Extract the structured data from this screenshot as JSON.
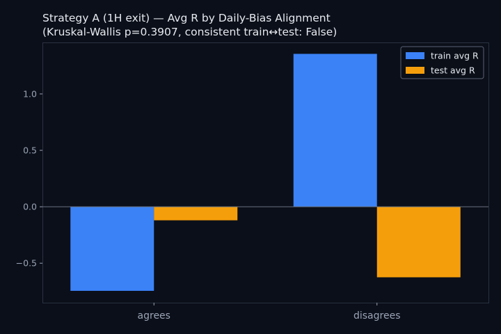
{
  "chart_data": {
    "type": "bar",
    "title": "Strategy A (1H exit) — Avg R by Daily-Bias Alignment",
    "subtitle": "(Kruskal-Wallis p=0.3907, consistent train↔test: False)",
    "xlabel": "",
    "ylabel": "",
    "categories": [
      "agrees",
      "disagrees"
    ],
    "series": [
      {
        "name": "train avg R",
        "values": [
          -0.745,
          1.355
        ],
        "color": "#3b82f6"
      },
      {
        "name": "test avg R",
        "values": [
          -0.12,
          -0.625
        ],
        "color": "#f59e0b"
      }
    ],
    "ylim": [
      -0.85,
      1.45
    ],
    "yticks": [
      {
        "value": -0.5,
        "label": "−0.5"
      },
      {
        "value": 0.0,
        "label": "0.0"
      },
      {
        "value": 0.5,
        "label": "0.5"
      },
      {
        "value": 1.0,
        "label": "1.0"
      }
    ],
    "grid": false,
    "zero_line": true,
    "legend_position": "top-right",
    "colors": {
      "background": "#0b0f19",
      "axes_frame": "#2a3142",
      "zero_line": "#6b7280",
      "text": "#e6e9ef",
      "tick_text": "#9aa3b5"
    }
  }
}
